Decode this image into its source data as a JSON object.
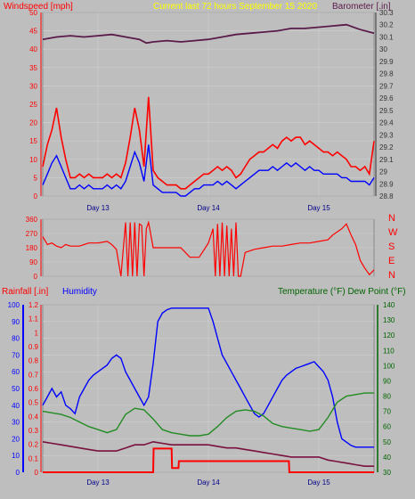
{
  "header": {
    "windspeed_label": "Windspeed [mph]",
    "current_label": "Current last 72 hours September 15 2020",
    "barometer_label": "Barometer [.in]"
  },
  "colors": {
    "background": "#bebebe",
    "wind_gust": "#ff0000",
    "wind_avg": "#0000ff",
    "barometer": "#5a1a4a",
    "direction": "#ff0000",
    "rainfall": "#ff0000",
    "humidity": "#0000ff",
    "temperature": "#228b22",
    "dewpoint": "#7a1040",
    "rain_axis": "#ff0000",
    "humidity_axis": "#0000ff",
    "temp_axis": "#006400",
    "title_yellow": "#ffff00"
  },
  "chart_data": [
    {
      "type": "line",
      "panel": "wind-barometer",
      "x_tick_labels": [
        "Day 13",
        "Day 14",
        "Day 15"
      ],
      "x_range_hours": [
        0,
        72
      ],
      "ylabel_left": "Windspeed [mph]",
      "ylim_left": [
        0,
        50
      ],
      "y_ticks_left": [
        "0",
        "5",
        "10",
        "15",
        "20",
        "25",
        "30",
        "35",
        "40",
        "45",
        "50"
      ],
      "ylabel_right": "Barometer [.in]",
      "ylim_right": [
        28.8,
        30.3
      ],
      "y_ticks_right": [
        "28.8",
        "28.9",
        "29",
        "29.1",
        "29.2",
        "29.3",
        "29.4",
        "29.5",
        "29.6",
        "29.7",
        "29.8",
        "29.9",
        "30",
        "30.1",
        "30.2",
        "30.3"
      ],
      "grid": true,
      "series": [
        {
          "axis": "right",
          "x": [
            0,
            3,
            6,
            9,
            12,
            15,
            18,
            21,
            22.5,
            24,
            27,
            30,
            33,
            36,
            39,
            42,
            45,
            48,
            51,
            54,
            57,
            60,
            63,
            66,
            69,
            72
          ],
          "values": [
            30.08,
            30.1,
            30.11,
            30.1,
            30.11,
            30.12,
            30.1,
            30.08,
            30.05,
            30.06,
            30.07,
            30.06,
            30.07,
            30.08,
            30.1,
            30.12,
            30.13,
            30.14,
            30.15,
            30.17,
            30.17,
            30.18,
            30.19,
            30.2,
            30.16,
            30.13
          ]
        },
        {
          "axis": "left",
          "x": [
            0,
            1,
            2,
            3,
            4,
            5,
            6,
            7,
            8,
            9,
            10,
            11,
            12,
            13,
            14,
            15,
            16,
            17,
            18,
            19,
            20,
            21,
            22,
            23,
            24,
            25,
            26,
            27,
            28,
            29,
            30,
            31,
            32,
            33,
            34,
            35,
            36,
            37,
            38,
            39,
            40,
            41,
            42,
            43,
            44,
            45,
            46,
            47,
            48,
            49,
            50,
            51,
            52,
            53,
            54,
            55,
            56,
            57,
            58,
            59,
            60,
            61,
            62,
            63,
            64,
            65,
            66,
            67,
            68,
            69,
            70,
            71,
            72
          ],
          "values": [
            8,
            14,
            18,
            24,
            16,
            10,
            5,
            5,
            6,
            5,
            6,
            5,
            5,
            5,
            6,
            5,
            6,
            5,
            9,
            16,
            24,
            18,
            8,
            27,
            7,
            5,
            4,
            3,
            3,
            3,
            2,
            2,
            3,
            4,
            5,
            6,
            6,
            7,
            8,
            7,
            8,
            7,
            5,
            6,
            8,
            10,
            11,
            12,
            12,
            13,
            14,
            13,
            15,
            16,
            15,
            16,
            16,
            14,
            15,
            14,
            13,
            12,
            12,
            11,
            12,
            11,
            10,
            8,
            8,
            7,
            8,
            6,
            15
          ]
        },
        {
          "axis": "left",
          "x": [
            0,
            1,
            2,
            3,
            4,
            5,
            6,
            7,
            8,
            9,
            10,
            11,
            12,
            13,
            14,
            15,
            16,
            17,
            18,
            19,
            20,
            21,
            22,
            23,
            24,
            25,
            26,
            27,
            28,
            29,
            30,
            31,
            32,
            33,
            34,
            35,
            36,
            37,
            38,
            39,
            40,
            41,
            42,
            43,
            44,
            45,
            46,
            47,
            48,
            49,
            50,
            51,
            52,
            53,
            54,
            55,
            56,
            57,
            58,
            59,
            60,
            61,
            62,
            63,
            64,
            65,
            66,
            67,
            68,
            69,
            70,
            71,
            72
          ],
          "values": [
            3,
            6,
            9,
            11,
            8,
            5,
            2,
            2,
            3,
            2,
            3,
            2,
            2,
            2,
            3,
            2,
            3,
            2,
            4,
            8,
            12,
            9,
            4,
            14,
            3,
            2,
            1,
            1,
            1,
            1,
            0,
            0,
            1,
            2,
            2,
            3,
            3,
            3,
            4,
            3,
            4,
            3,
            2,
            3,
            4,
            5,
            6,
            7,
            7,
            7,
            8,
            7,
            8,
            9,
            8,
            9,
            8,
            7,
            8,
            7,
            7,
            6,
            6,
            6,
            6,
            5,
            5,
            4,
            4,
            4,
            4,
            3,
            5
          ]
        }
      ]
    },
    {
      "type": "line",
      "panel": "wind-direction",
      "ylim": [
        0,
        360
      ],
      "y_ticks": [
        "0",
        "90",
        "180",
        "270",
        "360"
      ],
      "compass_labels": [
        "N",
        "W",
        "S",
        "E",
        "N"
      ],
      "grid": true,
      "series": [
        {
          "x": [
            0,
            1,
            2,
            3,
            4,
            5,
            6,
            8,
            10,
            12,
            14,
            15,
            16,
            17,
            18,
            18.5,
            19,
            19.5,
            20,
            20.5,
            21,
            21.5,
            22,
            22.5,
            23,
            24,
            26,
            28,
            30,
            32,
            34,
            36,
            37,
            37.5,
            38,
            38.5,
            39,
            39.5,
            40,
            40.5,
            41,
            41.5,
            42,
            42.5,
            43,
            44,
            46,
            48,
            50,
            52,
            54,
            56,
            58,
            60,
            62,
            63,
            64,
            65,
            66,
            67,
            68,
            69,
            70,
            71,
            72
          ],
          "values": [
            250,
            200,
            210,
            190,
            180,
            200,
            190,
            190,
            210,
            210,
            220,
            200,
            170,
            0,
            340,
            0,
            340,
            0,
            340,
            0,
            330,
            320,
            0,
            300,
            340,
            180,
            180,
            180,
            180,
            120,
            120,
            210,
            300,
            0,
            330,
            0,
            340,
            0,
            320,
            0,
            300,
            0,
            340,
            0,
            0,
            150,
            170,
            180,
            190,
            190,
            200,
            210,
            210,
            220,
            230,
            260,
            280,
            300,
            330,
            260,
            200,
            100,
            50,
            10,
            40
          ]
        }
      ]
    },
    {
      "type": "line",
      "panel": "rain-humidity-temperature",
      "x_tick_labels": [
        "Day 13",
        "Day 14",
        "Day 15"
      ],
      "x_range_hours": [
        0,
        72
      ],
      "rain_label": "Rainfall [.in]",
      "humidity_label": "Humidity",
      "temp_label": "Temperature (°F) Dew Point (°F)",
      "rain_ylim": [
        0,
        1.2
      ],
      "rain_ticks": [
        "0",
        "0.1",
        "0.2",
        "0.3",
        "0.4",
        "0.5",
        "0.6",
        "0.7",
        "0.8",
        "0.9",
        "1",
        "1.1",
        "1.2"
      ],
      "humidity_ylim": [
        0,
        100
      ],
      "humidity_ticks": [
        "0",
        "10",
        "20",
        "30",
        "40",
        "50",
        "60",
        "70",
        "80",
        "90",
        "100"
      ],
      "temp_ylim": [
        30,
        140
      ],
      "temp_ticks": [
        "30",
        "40",
        "50",
        "60",
        "70",
        "80",
        "90",
        "100",
        "110",
        "120",
        "130",
        "140"
      ],
      "grid": true,
      "series": [
        {
          "axis": "humidity",
          "x": [
            0,
            1,
            2,
            3,
            4,
            5,
            6,
            7,
            8,
            9,
            10,
            11,
            12,
            13,
            14,
            15,
            16,
            17,
            18,
            19,
            20,
            21,
            22,
            23,
            24,
            25,
            26,
            27,
            28,
            29,
            30,
            31,
            32,
            33,
            34,
            35,
            36,
            37,
            38,
            39,
            40,
            41,
            42,
            43,
            44,
            45,
            46,
            47,
            48,
            49,
            50,
            51,
            52,
            53,
            54,
            55,
            56,
            57,
            58,
            59,
            60,
            61,
            62,
            63,
            64,
            65,
            66,
            67,
            68,
            69,
            70,
            71,
            72
          ],
          "values": [
            40,
            45,
            50,
            45,
            48,
            40,
            38,
            35,
            45,
            50,
            55,
            58,
            60,
            62,
            64,
            68,
            70,
            68,
            60,
            55,
            50,
            45,
            40,
            45,
            65,
            90,
            95,
            97,
            98,
            98,
            98,
            98,
            98,
            98,
            98,
            98,
            98,
            90,
            80,
            70,
            65,
            60,
            55,
            50,
            45,
            40,
            35,
            33,
            35,
            40,
            45,
            50,
            55,
            58,
            60,
            62,
            63,
            64,
            65,
            66,
            63,
            60,
            55,
            45,
            30,
            20,
            18,
            16,
            15,
            15,
            15,
            15,
            15
          ]
        },
        {
          "axis": "temp",
          "x": [
            0,
            2,
            4,
            6,
            8,
            10,
            12,
            14,
            16,
            18,
            20,
            22,
            24,
            26,
            28,
            30,
            32,
            34,
            36,
            38,
            40,
            42,
            44,
            46,
            48,
            50,
            52,
            54,
            56,
            58,
            60,
            62,
            64,
            66,
            68,
            70,
            72
          ],
          "values": [
            70,
            69,
            68,
            66,
            63,
            60,
            58,
            56,
            58,
            68,
            72,
            71,
            65,
            58,
            56,
            55,
            54,
            54,
            55,
            60,
            66,
            70,
            71,
            70,
            67,
            62,
            60,
            59,
            58,
            57,
            58,
            66,
            76,
            80,
            81,
            82,
            82
          ]
        },
        {
          "axis": "temp",
          "x": [
            0,
            2,
            4,
            6,
            8,
            10,
            12,
            14,
            16,
            18,
            20,
            22,
            24,
            26,
            28,
            30,
            32,
            34,
            36,
            38,
            40,
            42,
            44,
            46,
            48,
            50,
            52,
            54,
            56,
            58,
            60,
            62,
            64,
            66,
            68,
            70,
            72
          ],
          "values": [
            50,
            49,
            48,
            47,
            46,
            45,
            44,
            44,
            44,
            46,
            48,
            48,
            50,
            49,
            48,
            48,
            48,
            48,
            48,
            47,
            46,
            46,
            45,
            44,
            43,
            42,
            41,
            40,
            40,
            40,
            40,
            38,
            37,
            36,
            35,
            34,
            34
          ]
        },
        {
          "axis": "rain",
          "x": [
            0,
            24,
            24.1,
            28,
            28.1,
            29.5,
            29.6,
            53.5,
            53.6,
            72
          ],
          "values": [
            0,
            0,
            0.17,
            0.17,
            0.03,
            0.03,
            0.08,
            0.08,
            0,
            0
          ]
        }
      ]
    }
  ]
}
